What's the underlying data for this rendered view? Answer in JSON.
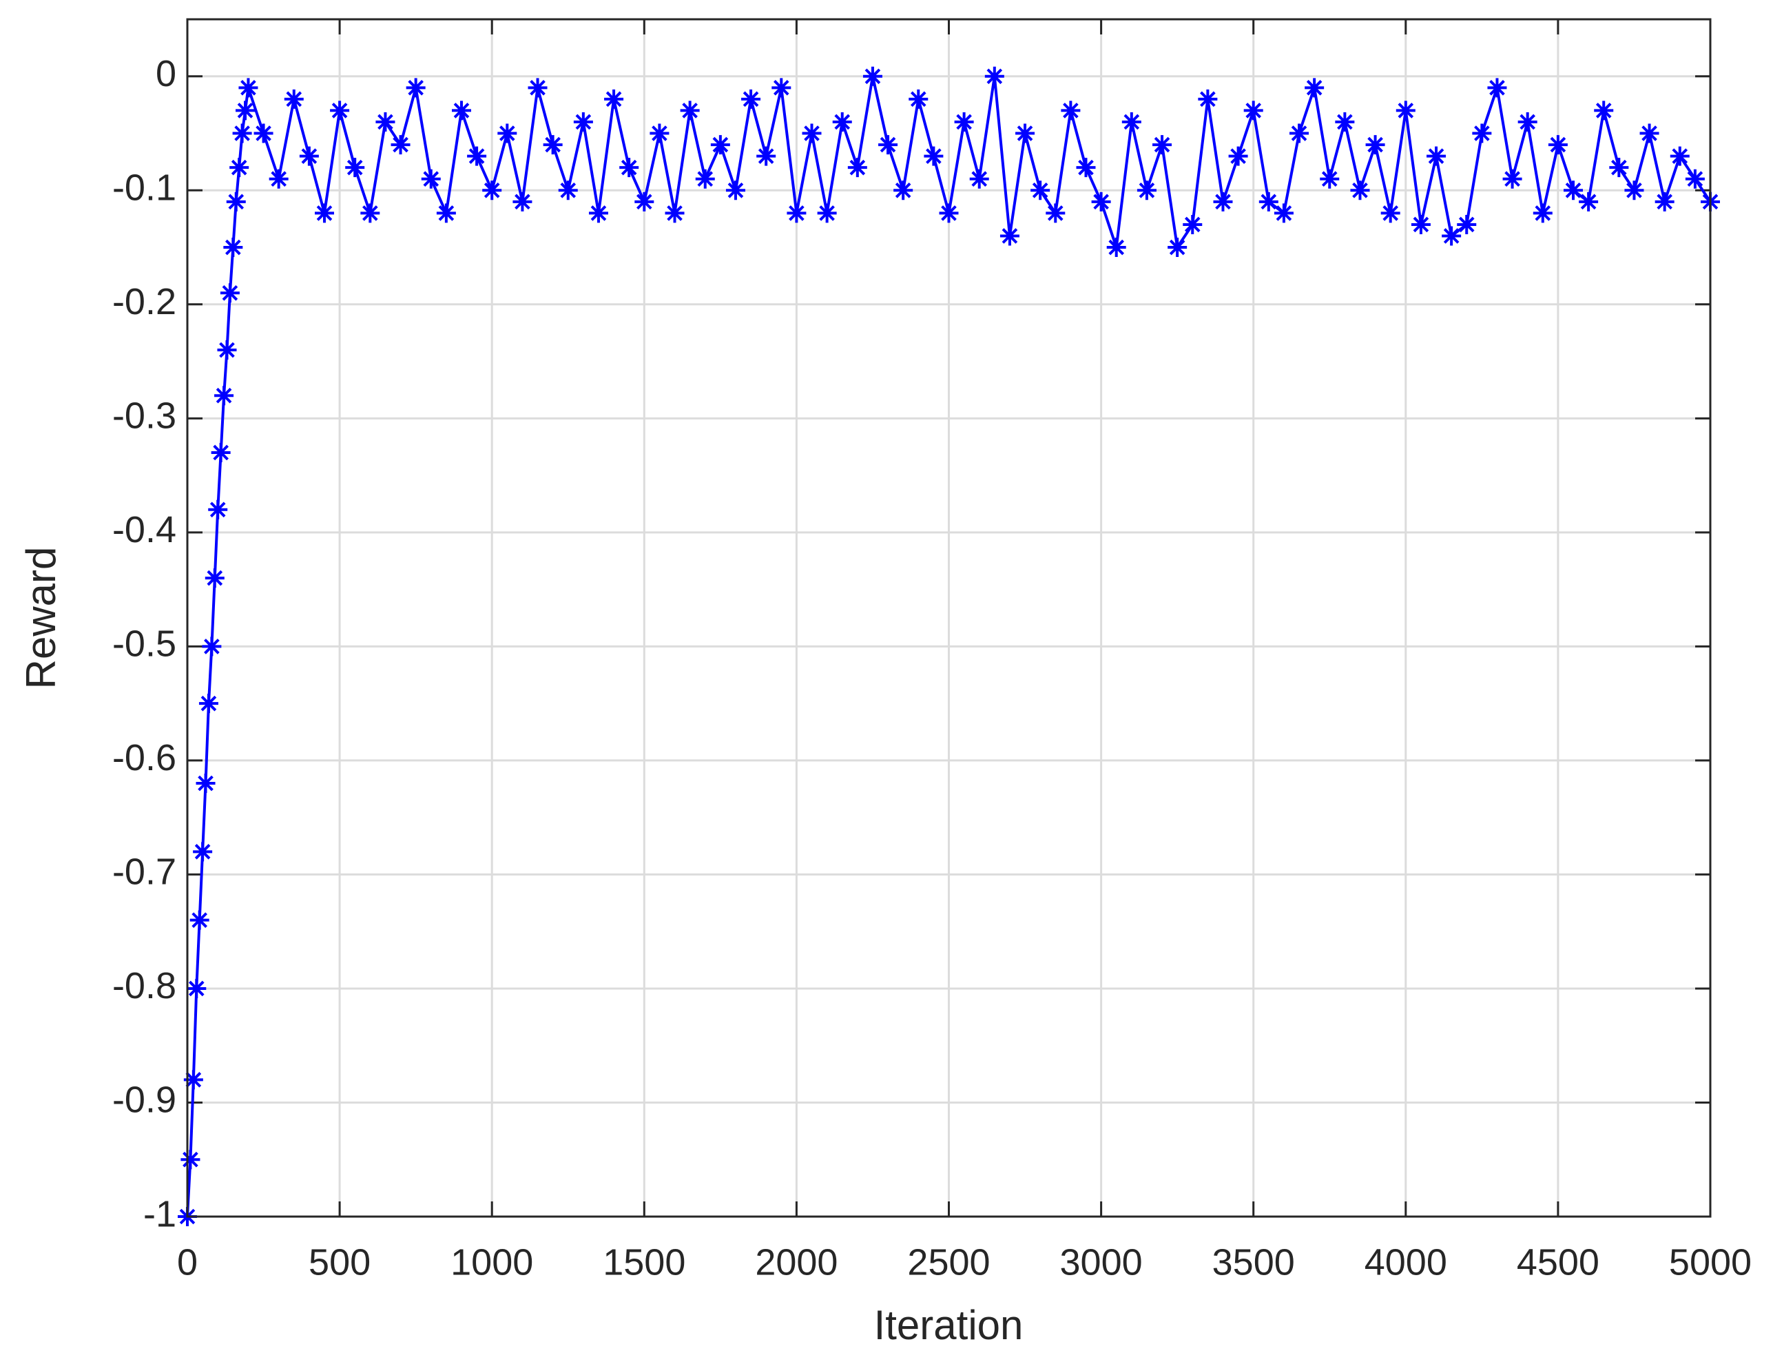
{
  "chart_data": {
    "type": "line",
    "xlabel": "Iteration",
    "ylabel": "Reward",
    "series": [
      {
        "name": "Reward",
        "color": "#0000ff",
        "marker": "asterisk",
        "x": [
          0,
          10,
          20,
          30,
          40,
          50,
          60,
          70,
          80,
          90,
          100,
          110,
          120,
          130,
          140,
          150,
          160,
          170,
          180,
          190,
          200,
          250,
          300,
          350,
          400,
          450,
          500,
          550,
          600,
          650,
          700,
          750,
          800,
          850,
          900,
          950,
          1000,
          1050,
          1100,
          1150,
          1200,
          1250,
          1300,
          1350,
          1400,
          1450,
          1500,
          1550,
          1600,
          1650,
          1700,
          1750,
          1800,
          1850,
          1900,
          1950,
          2000,
          2050,
          2100,
          2150,
          2200,
          2250,
          2300,
          2350,
          2400,
          2450,
          2500,
          2550,
          2600,
          2650,
          2700,
          2750,
          2800,
          2850,
          2900,
          2950,
          3000,
          3050,
          3100,
          3150,
          3200,
          3250,
          3300,
          3350,
          3400,
          3450,
          3500,
          3550,
          3600,
          3650,
          3700,
          3750,
          3800,
          3850,
          3900,
          3950,
          4000,
          4050,
          4100,
          4150,
          4200,
          4250,
          4300,
          4350,
          4400,
          4450,
          4500,
          4550,
          4600,
          4650,
          4700,
          4750,
          4800,
          4850,
          4900,
          4950,
          5000
        ],
        "values": [
          -1,
          -0.95,
          -0.88,
          -0.8,
          -0.74,
          -0.68,
          -0.62,
          -0.55,
          -0.5,
          -0.44,
          -0.38,
          -0.33,
          -0.28,
          -0.24,
          -0.19,
          -0.15,
          -0.11,
          -0.08,
          -0.05,
          -0.03,
          -0.01,
          -0.05,
          -0.09,
          -0.02,
          -0.07,
          -0.12,
          -0.03,
          -0.08,
          -0.12,
          -0.04,
          -0.06,
          -0.01,
          -0.09,
          -0.12,
          -0.03,
          -0.07,
          -0.1,
          -0.05,
          -0.11,
          -0.01,
          -0.06,
          -0.1,
          -0.04,
          -0.12,
          -0.02,
          -0.08,
          -0.11,
          -0.05,
          -0.12,
          -0.03,
          -0.09,
          -0.06,
          -0.1,
          -0.02,
          -0.07,
          -0.01,
          -0.12,
          -0.05,
          -0.12,
          -0.04,
          -0.08,
          0,
          -0.06,
          -0.1,
          -0.02,
          -0.07,
          -0.12,
          -0.04,
          -0.09,
          0,
          -0.14,
          -0.05,
          -0.1,
          -0.12,
          -0.03,
          -0.08,
          -0.11,
          -0.15,
          -0.04,
          -0.1,
          -0.06,
          -0.15,
          -0.13,
          -0.02,
          -0.11,
          -0.07,
          -0.03,
          -0.11,
          -0.12,
          -0.05,
          -0.01,
          -0.09,
          -0.04,
          -0.1,
          -0.06,
          -0.12,
          -0.03,
          -0.13,
          -0.07,
          -0.14,
          -0.13,
          -0.05,
          -0.01,
          -0.09,
          -0.04,
          -0.12,
          -0.06,
          -0.1,
          -0.11,
          -0.03,
          -0.08,
          -0.1,
          -0.05,
          -0.11,
          -0.07,
          -0.09,
          -0.11
        ]
      }
    ],
    "xlim": [
      0,
      5000
    ],
    "ylim": [
      -1,
      0.05
    ],
    "xticks": [
      0,
      500,
      1000,
      1500,
      2000,
      2500,
      3000,
      3500,
      4000,
      4500,
      5000
    ],
    "yticks": [
      -1,
      -0.9,
      -0.8,
      -0.7,
      -0.6,
      -0.5,
      -0.4,
      -0.3,
      -0.2,
      -0.1,
      0
    ],
    "grid": true
  }
}
